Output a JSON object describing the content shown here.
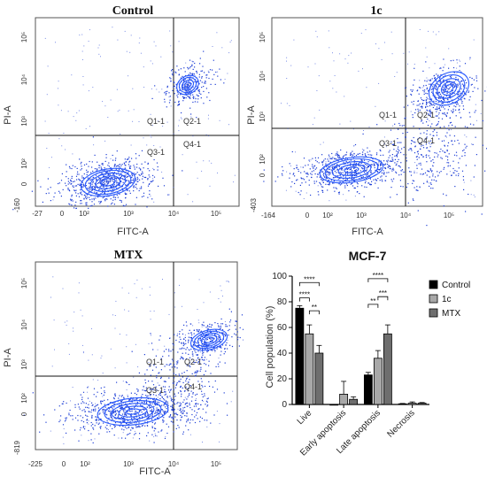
{
  "flow_plots": [
    {
      "title": "Control",
      "xlabel": "FITC-A",
      "ylabel": "PI-A",
      "x_ticks": [
        "-27",
        "0",
        "10²",
        "10³",
        "10⁴",
        "10⁵"
      ],
      "y_ticks": [
        "-160",
        "0",
        "10²",
        "10³",
        "10⁴",
        "10⁵"
      ],
      "quadrants": [
        "Q1-1",
        "Q2-1",
        "Q3-1",
        "Q4-1"
      ],
      "dot_color": "#1f3fd6",
      "contour_color": "#2b5cff"
    },
    {
      "title": "1c",
      "xlabel": "FITC-A",
      "ylabel": "PI-A",
      "x_ticks": [
        "-164",
        "0",
        "10²",
        "10³",
        "10⁴",
        "10⁵"
      ],
      "y_ticks": [
        "-403",
        "0",
        "10²",
        "10³",
        "10⁴",
        "10⁵"
      ],
      "quadrants": [
        "Q1-1",
        "Q2-1",
        "Q3-1",
        "Q4-1"
      ],
      "dot_color": "#1f3fd6",
      "contour_color": "#2b5cff"
    },
    {
      "title": "MTX",
      "xlabel": "FITC-A",
      "ylabel": "PI-A",
      "x_ticks": [
        "-225",
        "0",
        "10²",
        "10³",
        "10⁴",
        "10⁵"
      ],
      "y_ticks": [
        "-819",
        "0",
        "10²",
        "10³",
        "10⁴",
        "10⁵"
      ],
      "quadrants": [
        "Q1-1",
        "Q2-1",
        "Q3-1",
        "Q4-1"
      ],
      "dot_color": "#1f3fd6",
      "contour_color": "#2b5cff"
    }
  ],
  "chart_data": {
    "type": "bar",
    "title": "MCF-7",
    "xlabel": "",
    "ylabel": "Cell population (%)",
    "ylim": [
      0,
      100
    ],
    "yticks": [
      0,
      20,
      40,
      60,
      80,
      100
    ],
    "categories": [
      "Live",
      "Early apoptosis",
      "Late apoptosis",
      "Necrosis"
    ],
    "legend_position": "top-right",
    "series": [
      {
        "name": "Control",
        "color": "#000000",
        "values": [
          75,
          0,
          23,
          0.5
        ],
        "errors": [
          2,
          0,
          2,
          0.3
        ]
      },
      {
        "name": "1c",
        "color": "#a8a8a8",
        "values": [
          55,
          8,
          36,
          1
        ],
        "errors": [
          7,
          10,
          6,
          1
        ]
      },
      {
        "name": "MTX",
        "color": "#6e6e6e",
        "values": [
          40,
          4,
          55,
          1
        ],
        "errors": [
          6,
          2,
          7,
          0.5
        ]
      }
    ],
    "significance": [
      {
        "category": "Live",
        "from": "Control",
        "to": "MTX",
        "label": "****"
      },
      {
        "category": "Live",
        "from": "Control",
        "to": "1c",
        "label": "****"
      },
      {
        "category": "Live",
        "from": "1c",
        "to": "MTX",
        "label": "**"
      },
      {
        "category": "Late apoptosis",
        "from": "Control",
        "to": "MTX",
        "label": "****"
      },
      {
        "category": "Late apoptosis",
        "from": "Control",
        "to": "1c",
        "label": "**"
      },
      {
        "category": "Late apoptosis",
        "from": "1c",
        "to": "MTX",
        "label": "***"
      }
    ]
  }
}
